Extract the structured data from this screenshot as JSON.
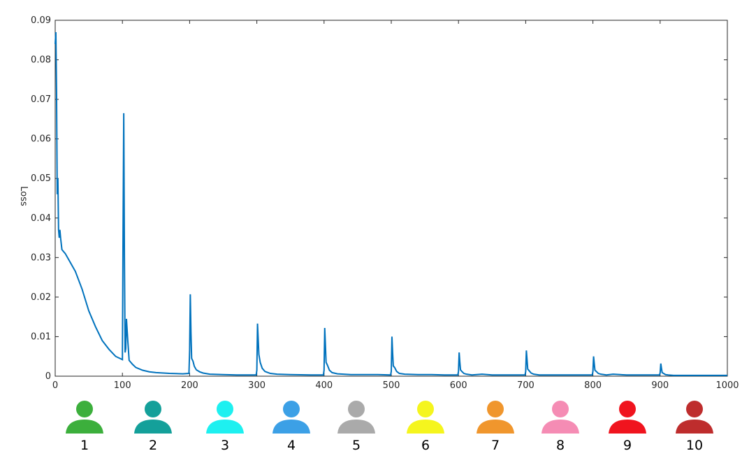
{
  "chart_data": {
    "type": "line",
    "title": "",
    "xlabel": "",
    "ylabel": "Loss",
    "xlim": [
      0,
      1000
    ],
    "ylim": [
      0,
      0.09
    ],
    "x_ticks": [
      0,
      100,
      200,
      300,
      400,
      500,
      600,
      700,
      800,
      900,
      1000
    ],
    "x_tick_labels": [
      "0",
      "100",
      "200",
      "300",
      "400",
      "500",
      "600",
      "700",
      "800",
      "900",
      "1000"
    ],
    "y_ticks": [
      0,
      0.01,
      0.02,
      0.03,
      0.04,
      0.05,
      0.06,
      0.07,
      0.08,
      0.09
    ],
    "y_tick_labels": [
      "0",
      "0.01",
      "0.02",
      "0.03",
      "0.04",
      "0.05",
      "0.06",
      "0.07",
      "0.08",
      "0.09"
    ],
    "grid": false,
    "series": [
      {
        "color": "#0072bd",
        "x": [
          0,
          1,
          2,
          3,
          4,
          5,
          6,
          7,
          8,
          10,
          15,
          20,
          25,
          30,
          40,
          50,
          60,
          70,
          80,
          90,
          100,
          101,
          102,
          103,
          104,
          105,
          106,
          108,
          110,
          115,
          120,
          130,
          140,
          150,
          170,
          190,
          199,
          200,
          201,
          202,
          203,
          205,
          207,
          210,
          215,
          220,
          230,
          250,
          270,
          299,
          300,
          301,
          302,
          303,
          305,
          308,
          312,
          320,
          330,
          350,
          380,
          399,
          400,
          401,
          402,
          403,
          405,
          408,
          412,
          420,
          440,
          460,
          480,
          499,
          500,
          501,
          502,
          503,
          505,
          508,
          512,
          520,
          540,
          560,
          580,
          599,
          600,
          601,
          602,
          603,
          605,
          608,
          612,
          620,
          635,
          650,
          680,
          699,
          700,
          701,
          702,
          703,
          705,
          708,
          712,
          720,
          735,
          750,
          780,
          799,
          800,
          801,
          802,
          803,
          805,
          808,
          812,
          820,
          830,
          850,
          880,
          899,
          900,
          901,
          902,
          903,
          905,
          908,
          912,
          920,
          950,
          1000
        ],
        "y": [
          0.084,
          0.087,
          0.072,
          0.046,
          0.05,
          0.037,
          0.035,
          0.037,
          0.035,
          0.032,
          0.031,
          0.0295,
          0.028,
          0.0265,
          0.022,
          0.0165,
          0.0125,
          0.009,
          0.0068,
          0.005,
          0.0042,
          0.038,
          0.0665,
          0.03,
          0.006,
          0.007,
          0.0145,
          0.009,
          0.004,
          0.003,
          0.0022,
          0.0015,
          0.0011,
          0.0009,
          0.0007,
          0.0006,
          0.0007,
          0.0065,
          0.0207,
          0.011,
          0.0045,
          0.0038,
          0.0025,
          0.0016,
          0.0011,
          0.0008,
          0.0005,
          0.0004,
          0.0003,
          0.0003,
          0.0015,
          0.0133,
          0.0095,
          0.0055,
          0.0035,
          0.002,
          0.0012,
          0.0007,
          0.0005,
          0.0004,
          0.0003,
          0.0003,
          0.0015,
          0.0122,
          0.008,
          0.0035,
          0.0028,
          0.0015,
          0.0009,
          0.0006,
          0.0004,
          0.0004,
          0.0004,
          0.0003,
          0.0012,
          0.01,
          0.006,
          0.0026,
          0.0022,
          0.0012,
          0.0007,
          0.0005,
          0.0004,
          0.0004,
          0.0003,
          0.0003,
          0.0012,
          0.006,
          0.0036,
          0.0016,
          0.0012,
          0.0007,
          0.0005,
          0.0003,
          0.0005,
          0.0003,
          0.0003,
          0.0003,
          0.0012,
          0.0065,
          0.0042,
          0.0018,
          0.0014,
          0.0008,
          0.0005,
          0.0003,
          0.0003,
          0.0003,
          0.0003,
          0.0003,
          0.0012,
          0.005,
          0.0032,
          0.0015,
          0.0012,
          0.0007,
          0.0005,
          0.0003,
          0.0005,
          0.0003,
          0.0003,
          0.0003,
          0.0008,
          0.0032,
          0.002,
          0.0009,
          0.0007,
          0.0004,
          0.0003,
          0.0002,
          0.0002,
          0.0002
        ]
      }
    ]
  },
  "users": [
    {
      "label": "1",
      "icon": "user-icon",
      "color": "#3caf3c"
    },
    {
      "label": "2",
      "icon": "user-icon",
      "color": "#14a09a"
    },
    {
      "label": "3",
      "icon": "user-icon",
      "color": "#1ef0f0"
    },
    {
      "label": "4",
      "icon": "user-icon",
      "color": "#3ca0e6"
    },
    {
      "label": "5",
      "icon": "user-icon",
      "color": "#aaaaaa"
    },
    {
      "label": "6",
      "icon": "user-icon",
      "color": "#f5f51e"
    },
    {
      "label": "7",
      "icon": "user-icon",
      "color": "#f0962d"
    },
    {
      "label": "8",
      "icon": "user-icon",
      "color": "#f58cb4"
    },
    {
      "label": "9",
      "icon": "user-icon",
      "color": "#f0141e"
    },
    {
      "label": "10",
      "icon": "user-icon",
      "color": "#be2d2d"
    }
  ]
}
